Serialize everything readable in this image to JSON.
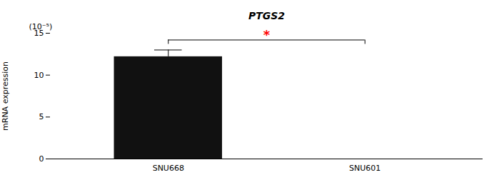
{
  "chart_data": {
    "type": "bar",
    "title": "PTGS2",
    "categories": [
      "SNU668",
      "SNU601"
    ],
    "values": [
      12.2,
      0.0
    ],
    "errors": [
      0.8,
      null
    ],
    "color": "#111111",
    "ylabel": "mRNA expression",
    "unit_label": "(10⁻⁵)",
    "ylim": [
      0,
      15
    ],
    "yticks": [
      0,
      5,
      10,
      15
    ],
    "grid": false,
    "significance": {
      "label": "*",
      "between": [
        "SNU668",
        "SNU601"
      ],
      "color": "red"
    }
  }
}
